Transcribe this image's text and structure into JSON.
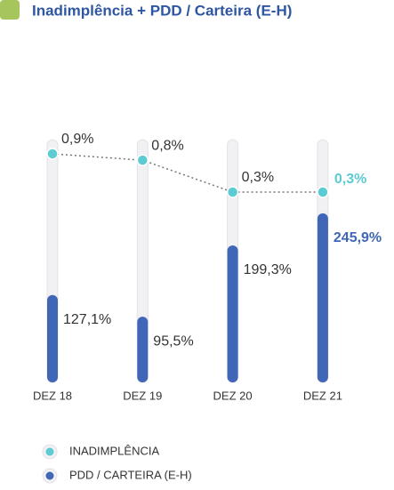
{
  "chart_data": {
    "type": "bar",
    "title": "Inadimplência + PDD / Carteira (E-H)",
    "categories": [
      "DEZ 18",
      "DEZ 19",
      "DEZ 20",
      "DEZ 21"
    ],
    "series": [
      {
        "name": "INADIMPLÊNCIA",
        "type": "line",
        "color": "#5ccbd2",
        "values": [
          0.9,
          0.8,
          0.3,
          0.3
        ],
        "value_labels": [
          "0,9%",
          "0,8%",
          "0,3%",
          "0,3%"
        ]
      },
      {
        "name": "PDD / CARTEIRA (E-H)",
        "type": "bar",
        "color": "#3f66b7",
        "values": [
          127.1,
          95.5,
          199.3,
          245.9
        ],
        "value_labels": [
          "127,1%",
          "95,5%",
          "199,3%",
          "245,9%"
        ]
      }
    ]
  }
}
